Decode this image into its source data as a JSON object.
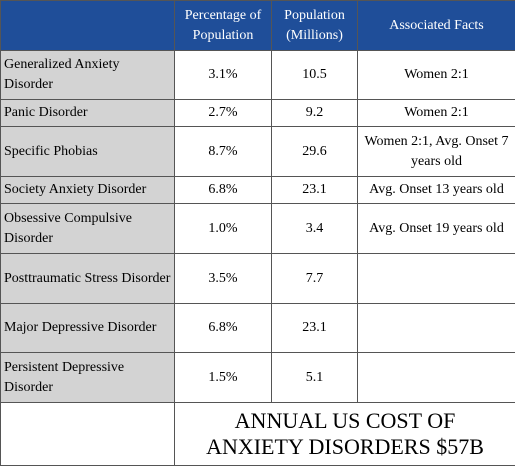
{
  "table": {
    "header": [
      "Percentage of Population",
      "Population (Millions)",
      "Associated Facts"
    ],
    "rows": [
      [
        "Generalized Anxiety Disorder",
        "3.1%",
        "10.5",
        "Women 2:1"
      ],
      [
        "Panic Disorder",
        "2.7%",
        "9.2",
        "Women 2:1"
      ],
      [
        "Specific Phobias",
        "8.7%",
        "29.6",
        "Women 2:1, Avg. Onset 7 years old"
      ],
      [
        "Society Anxiety Disorder",
        "6.8%",
        "23.1",
        "Avg. Onset 13 years old"
      ],
      [
        "Obsessive Compulsive Disorder",
        "1.0%",
        "3.4",
        "Avg. Onset 19 years old"
      ],
      [
        "Posttraumatic Stress Disorder",
        "3.5%",
        "7.7"
      ],
      [
        "Major Depressive Disorder",
        "6.8%",
        "23.1"
      ],
      [
        "Persistent Depressive Disorder",
        "1.5%",
        "5.1"
      ]
    ],
    "footer": "ANNUAL US COST OF ANXIETY DISORDERS $57B"
  }
}
